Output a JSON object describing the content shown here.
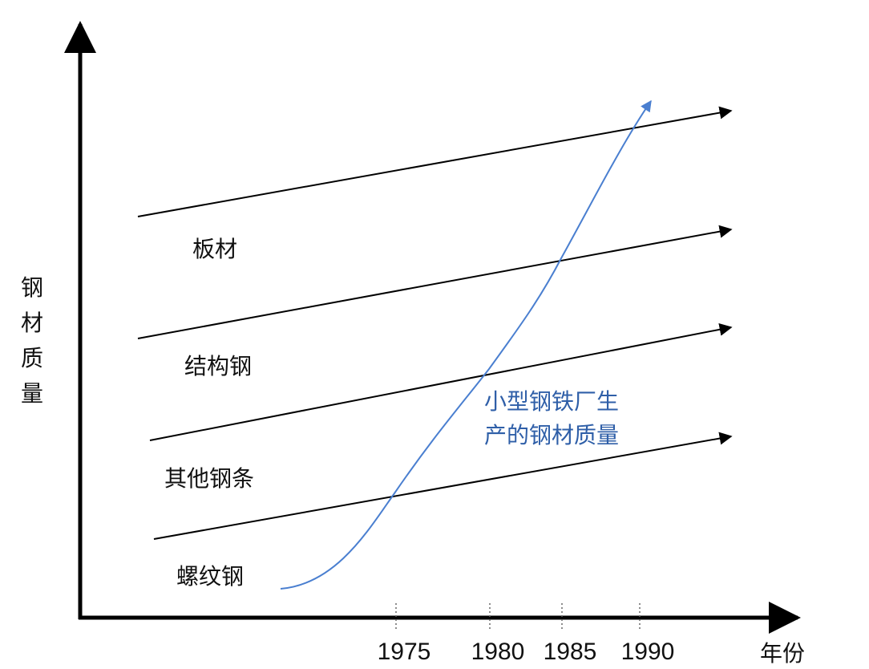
{
  "chart_data": {
    "type": "line",
    "title": "",
    "xlabel": "年份",
    "ylabel": "钢材质量",
    "x_ticks": [
      "1975",
      "1980",
      "1985",
      "1990"
    ],
    "grid": false,
    "bands": [
      {
        "name": "板材"
      },
      {
        "name": "结构钢"
      },
      {
        "name": "其他钢条"
      },
      {
        "name": "螺纹钢"
      }
    ],
    "trend": {
      "name": "小型钢铁厂生产的钢材质量",
      "lines": [
        "小型钢铁厂生",
        "产的钢材质量"
      ],
      "color": "#4a7fd0"
    },
    "colors": {
      "axis": "#000000",
      "band_line": "#000000",
      "trend": "#4a7fd0"
    }
  }
}
